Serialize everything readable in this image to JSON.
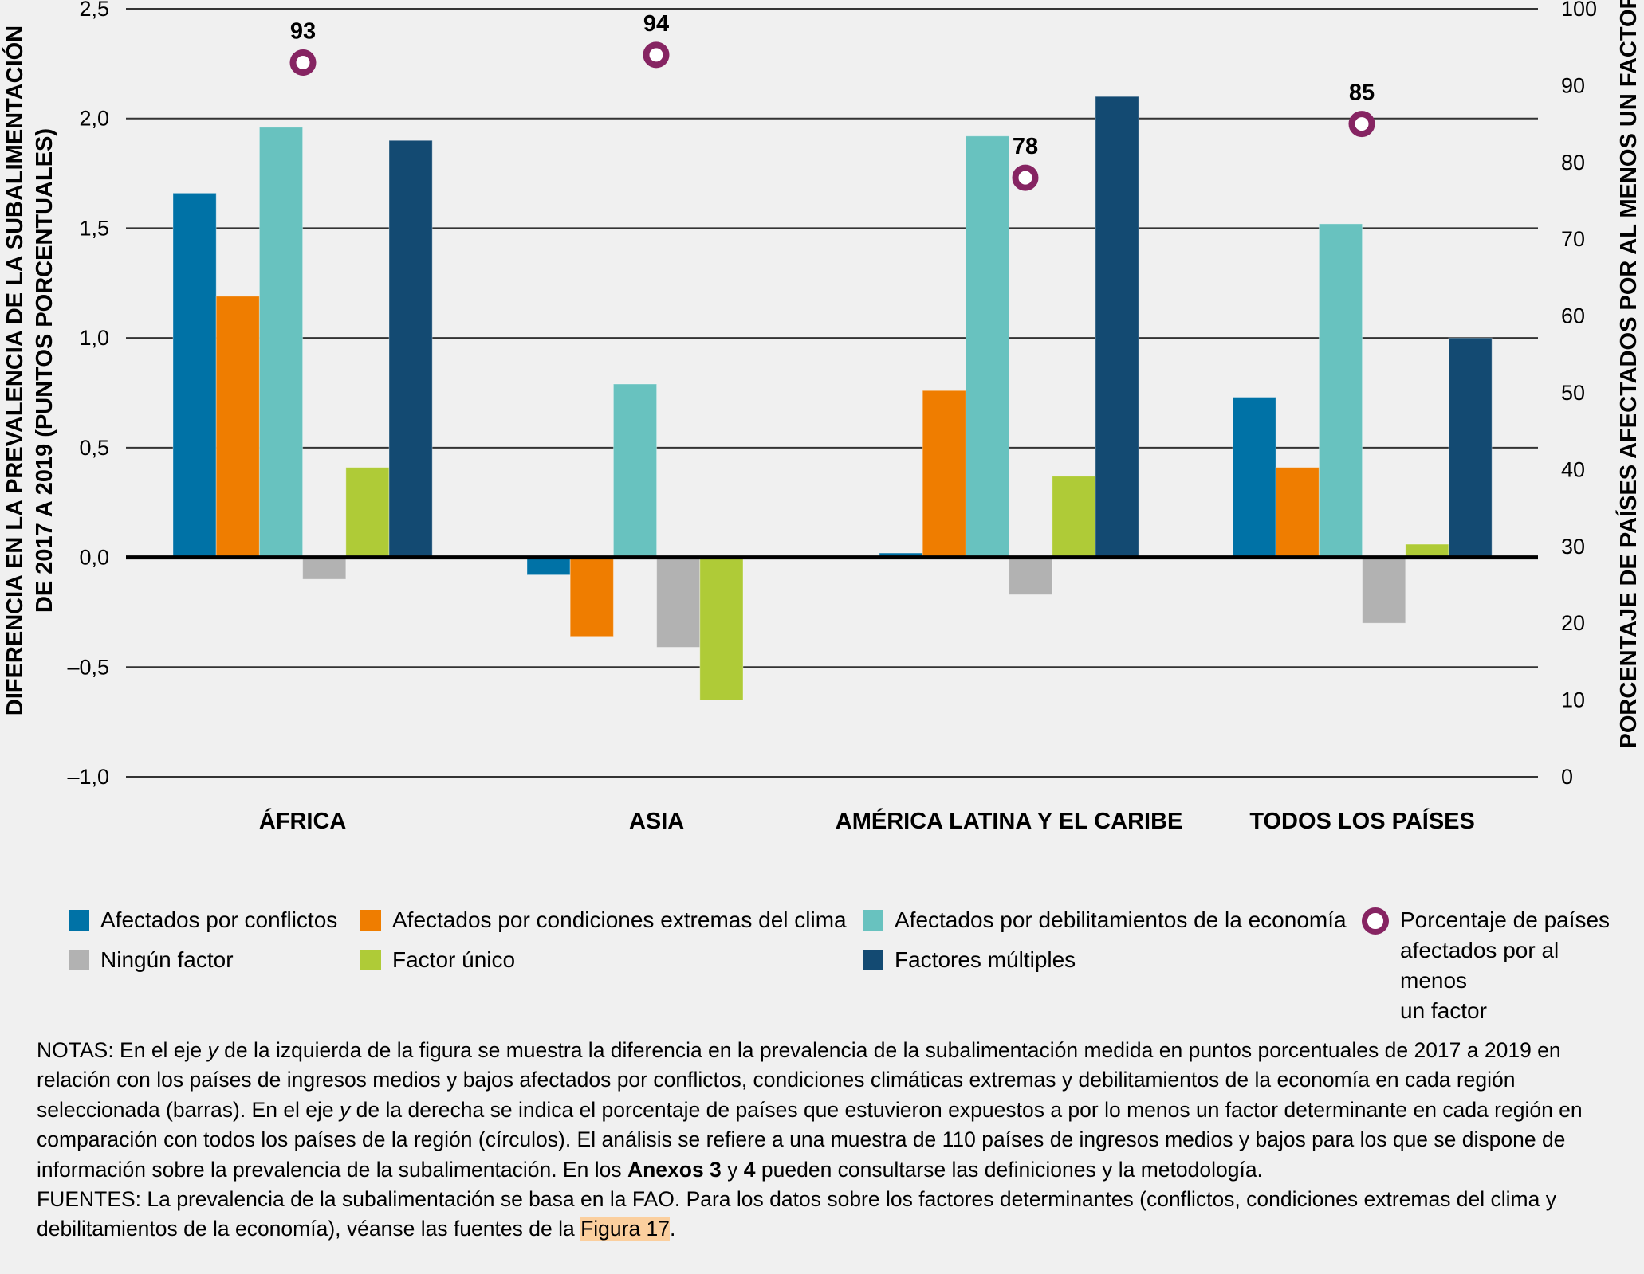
{
  "chart_data": {
    "type": "bar",
    "title": "",
    "categories": [
      "ÁFRICA",
      "ASIA",
      "AMÉRICA LATINA Y EL CARIBE",
      "TODOS LOS PAÍSES"
    ],
    "series": [
      {
        "name": "Afectados por conflictos",
        "color": "#0072a6",
        "values": [
          1.66,
          -0.08,
          0.02,
          0.73
        ]
      },
      {
        "name": "Afectados por condiciones extremas del clima",
        "color": "#ef7d00",
        "values": [
          1.19,
          -0.36,
          0.76,
          0.41
        ]
      },
      {
        "name": "Afectados por debilitamientos de la economía",
        "color": "#68c2bf",
        "values": [
          1.96,
          0.79,
          1.92,
          1.52
        ]
      },
      {
        "name": "Ningún factor",
        "color": "#b2b2b2",
        "values": [
          -0.1,
          -0.41,
          -0.17,
          -0.3
        ]
      },
      {
        "name": "Factor único",
        "color": "#afcb37",
        "values": [
          0.41,
          -0.65,
          0.37,
          0.06
        ]
      },
      {
        "name": "Factores múltiples",
        "color": "#134a72",
        "values": [
          1.9,
          0.0,
          2.1,
          1.0
        ]
      }
    ],
    "secondary_series": {
      "name": "Porcentaje de países afectados por al menos un factor",
      "type": "scatter",
      "color": "#862462",
      "values": [
        93,
        94,
        78,
        85
      ],
      "labels": [
        "93",
        "94",
        "78",
        "85"
      ]
    },
    "ylabel": "DIFERENCIA EN LA PREVALENCIA DE LA SUBALIMENTACIÓN DE 2017 A 2019 (PUNTOS PORCENTUALES)",
    "ylabel_lines": [
      "DIFERENCIA EN LA PREVALENCIA DE LA SUBALIMENTACIÓN",
      "DE 2017 A 2019 (PUNTOS PORCENTUALES)"
    ],
    "y2label": "PORCENTAJE DE PAÍSES AFECTADOS POR AL MENOS UN FACTOR",
    "xlabel": "",
    "ylim": [
      -1.0,
      2.5
    ],
    "y2lim": [
      0,
      100
    ],
    "yticks": [
      -1.0,
      -0.5,
      0.0,
      0.5,
      1.0,
      1.5,
      2.0,
      2.5
    ],
    "ytick_labels": [
      "–1,0",
      "–0,5",
      "0,0",
      "0,5",
      "1,0",
      "1,5",
      "2,0",
      "2,5"
    ],
    "y2ticks": [
      0,
      10,
      20,
      30,
      40,
      50,
      60,
      70,
      80,
      90,
      100
    ],
    "y2tick_labels": [
      "0",
      "10",
      "20",
      "30",
      "40",
      "50",
      "60",
      "70",
      "80",
      "90",
      "100"
    ],
    "grid": true,
    "legend_position": "bottom"
  },
  "legend": {
    "items": [
      {
        "label": "Afectados por conflictos",
        "color": "#0072a6"
      },
      {
        "label": "Afectados por condiciones extremas del clima",
        "color": "#ef7d00"
      },
      {
        "label": "Afectados por debilitamientos de la economía",
        "color": "#68c2bf"
      },
      {
        "label": "Ningún factor",
        "color": "#b2b2b2"
      },
      {
        "label": "Factor único",
        "color": "#afcb37"
      },
      {
        "label": "Factores múltiples",
        "color": "#134a72"
      }
    ],
    "marker_label": "Porcentaje de países afectados por al menos un factor",
    "marker_label_lines": [
      "Porcentaje de países",
      "afectados por al menos",
      "un factor"
    ]
  },
  "notes": {
    "notes_prefix": "NOTAS: ",
    "notes_part1": "En el eje ",
    "y1": "y",
    "notes_part2": " de la izquierda de la figura se muestra la diferencia en la prevalencia de la subalimentación medida en puntos porcentuales de 2017 a 2019 en relación con los países de ingresos medios y bajos afectados por conflictos, condiciones climáticas extremas y debilitamientos de la economía en cada región seleccionada (barras). En el eje ",
    "y2": "y",
    "notes_part3": " de la derecha se indica el porcentaje de países que estuvieron expuestos a por lo menos un factor determinante en cada región en comparación con todos los países de la región (círculos). El análisis se refiere a una muestra de 110 países de ingresos medios y bajos para los que se dispone de información sobre la prevalencia de la subalimentación. En los ",
    "anexos": "Anexos 3",
    "y_conj": " y ",
    "anexo4": "4",
    "notes_part4": " pueden consultarse las definiciones y la metodología.",
    "sources_prefix": "FUENTES: ",
    "sources_text": "La prevalencia de la subalimentación se basa en la FAO. Para los datos sobre los factores determinantes (conflictos, condiciones extremas del clima y debilitamientos de la economía), véanse las fuentes de la ",
    "figure_link": "Figura 17",
    "sources_end": "."
  }
}
